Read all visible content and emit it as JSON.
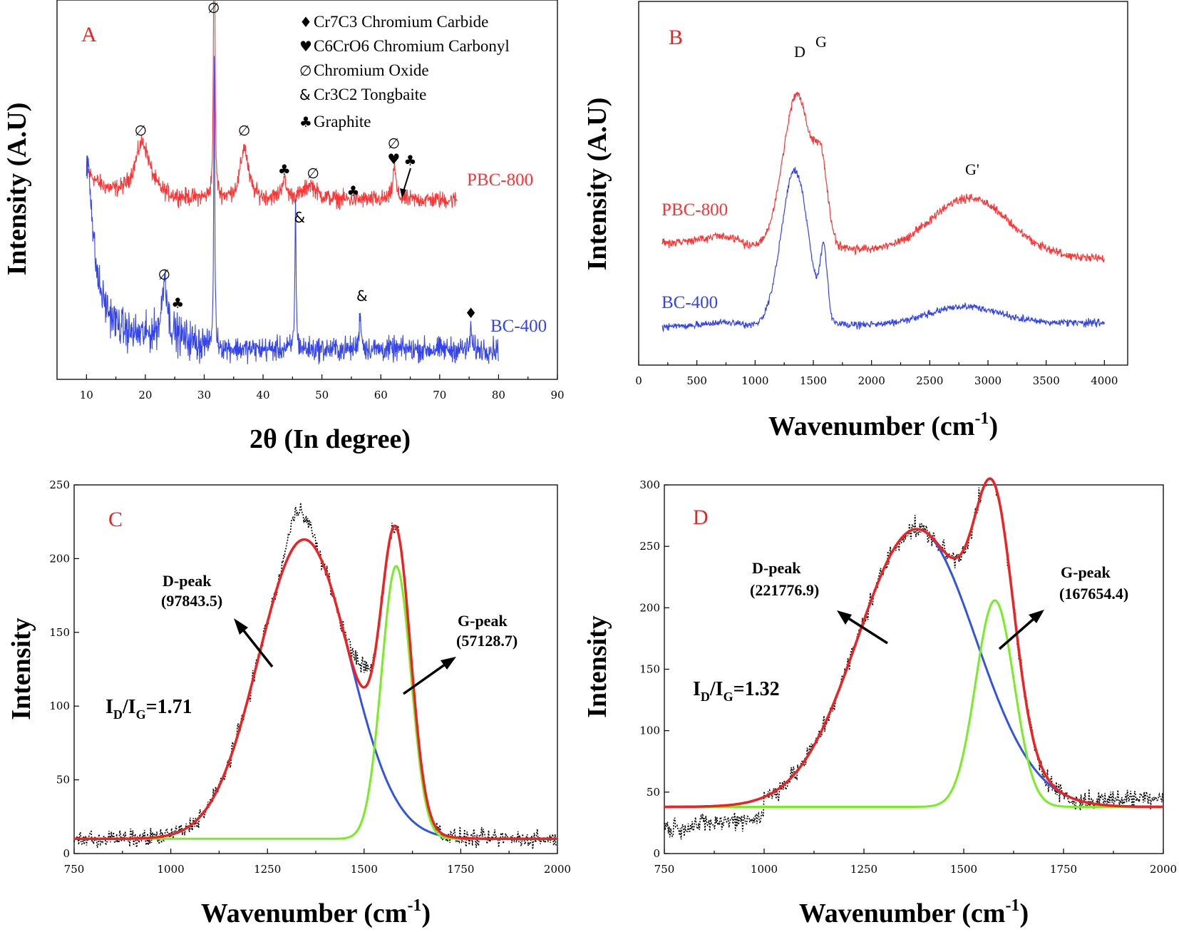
{
  "colors": {
    "red": "#ff3333",
    "blue": "#3344ee",
    "green": "#77ee22",
    "fitred": "#ee2222",
    "fitblue": "#3355dd",
    "noise": "#000000",
    "letter": "#ee2222"
  },
  "chart_data": [
    {
      "panel": "A",
      "type": "line",
      "xlabel": "2θ (In degree)",
      "ylabel": "Intensity (A.U)",
      "xlim": [
        5,
        90
      ],
      "xticks": [
        10,
        20,
        30,
        40,
        50,
        60,
        70,
        80,
        90
      ],
      "ylim": [
        0,
        100
      ],
      "series": [
        {
          "name": "PBC-800",
          "color": "red",
          "x_range": [
            10,
            73
          ],
          "baseline": 48,
          "peaks": [
            {
              "x": 19.5,
              "h": 15,
              "w": 1.6
            },
            {
              "x": 31.7,
              "h": 97,
              "w": 0.12
            },
            {
              "x": 36.8,
              "h": 14,
              "w": 0.8
            },
            {
              "x": 43.5,
              "h": 5,
              "w": 0.5
            },
            {
              "x": 48,
              "h": 4,
              "w": 1.2
            },
            {
              "x": 62.3,
              "h": 9,
              "w": 0.3
            }
          ]
        },
        {
          "name": "BC-400",
          "color": "blue",
          "x_range": [
            10,
            80
          ],
          "baseline": 8,
          "peaks": [
            {
              "x": 10.3,
              "h": 30,
              "w": 0.8
            },
            {
              "x": 23.3,
              "h": 16,
              "w": 0.5
            },
            {
              "x": 31.7,
              "h": 80,
              "w": 0.1
            },
            {
              "x": 45.5,
              "h": 40,
              "w": 0.12
            },
            {
              "x": 56.5,
              "h": 10,
              "w": 0.2
            },
            {
              "x": 75.3,
              "h": 8,
              "w": 0.1
            }
          ]
        }
      ],
      "annotations": [
        {
          "x": 19.2,
          "sym": "∅"
        },
        {
          "x": 31.6,
          "sym": "∅"
        },
        {
          "x": 36.8,
          "sym": "∅"
        },
        {
          "x": 43.6,
          "sym": "♣"
        },
        {
          "x": 48.5,
          "sym": "∅"
        },
        {
          "x": 55.3,
          "sym": "♣"
        },
        {
          "x": 62.2,
          "sym": "∅"
        },
        {
          "x": 62.2,
          "sym": "♥"
        },
        {
          "x": 65,
          "sym": "♣"
        },
        {
          "x": 46.2,
          "sym": "&"
        },
        {
          "x": 23.2,
          "sym": "∅"
        },
        {
          "x": 25.5,
          "sym": "♣"
        },
        {
          "x": 56.8,
          "sym": "&"
        },
        {
          "x": 75.3,
          "sym": "♦"
        }
      ],
      "legend": [
        {
          "sym": "♦",
          "text": "Cr7C3 Chromium Carbide"
        },
        {
          "sym": "♥",
          "text": "C6CrO6 Chromium Carbonyl"
        },
        {
          "sym": "∅",
          "text": "Chromium Oxide"
        },
        {
          "sym": "&",
          "text": "Cr3C2 Tongbaite"
        },
        {
          "sym": "♣",
          "text": "Graphite"
        }
      ]
    },
    {
      "panel": "B",
      "type": "line",
      "xlabel": "Wavenumber (cm",
      "xlabel_sup": "-1",
      "xlabel_end": ")",
      "ylabel": "Intensity (A.U)",
      "xlim": [
        0,
        4200
      ],
      "xticks": [
        0,
        500,
        1000,
        1500,
        2000,
        2500,
        3000,
        3500,
        4000
      ],
      "series": [
        {
          "name": "PBC-800",
          "color": "red",
          "x_range": [
            200,
            4000
          ]
        },
        {
          "name": "BC-400",
          "color": "blue",
          "x_range": [
            200,
            4000
          ]
        }
      ],
      "peak_labels": [
        {
          "text": "D",
          "x": 1340
        },
        {
          "text": "G",
          "x": 1580
        },
        {
          "text": "G'",
          "x": 2830
        }
      ]
    },
    {
      "panel": "C",
      "type": "line",
      "xlabel": "Wavenumber (cm",
      "xlabel_sup": "-1",
      "xlabel_end": ")",
      "ylabel": "Intensity",
      "xlim": [
        750,
        2000
      ],
      "ylim": [
        0,
        250
      ],
      "xticks": [
        750,
        1000,
        1250,
        1500,
        1750,
        2000
      ],
      "yticks": [
        0,
        50,
        100,
        150,
        200,
        250
      ],
      "baseline": 10,
      "d_peak": {
        "center": 1345,
        "amp": 203,
        "sigma": 118
      },
      "g_peak": {
        "center": 1583,
        "amp": 185,
        "sigma": 38
      },
      "d_label": "D-peak",
      "d_value": "(97843.5)",
      "g_label": "G-peak",
      "g_value": "(57128.7)",
      "ratio_main": "I",
      "ratio_sub1": "D",
      "ratio_slash": "/I",
      "ratio_sub2": "G",
      "ratio_value": "=1.71"
    },
    {
      "panel": "D",
      "type": "line",
      "xlabel": "Wavenumber (cm",
      "xlabel_sup": "-1",
      "xlabel_end": ")",
      "ylabel": "Intensity",
      "xlim": [
        750,
        2000
      ],
      "ylim": [
        0,
        300
      ],
      "xticks": [
        750,
        1000,
        1250,
        1500,
        1750,
        2000
      ],
      "yticks": [
        0,
        50,
        100,
        150,
        200,
        250,
        300
      ],
      "baseline": 38,
      "d_peak": {
        "center": 1382,
        "amp": 226,
        "sigma": 148
      },
      "g_peak": {
        "center": 1578,
        "amp": 168,
        "sigma": 48
      },
      "d_label": "D-peak",
      "d_value": "(221776.9)",
      "g_label": "G-peak",
      "g_value": "(167654.4)",
      "ratio_main": "I",
      "ratio_sub1": "D",
      "ratio_slash": "/I",
      "ratio_sub2": "G",
      "ratio_value": "=1.32"
    }
  ]
}
